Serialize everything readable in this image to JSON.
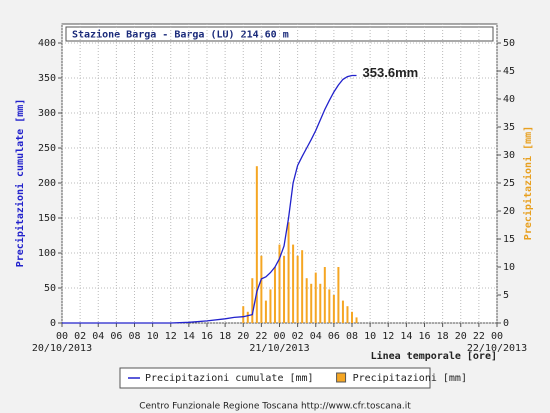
{
  "chart_data": {
    "type": "combo",
    "title": "Stazione Barga - Barga (LU) 214.60 m",
    "xlabel": "Linea temporale [ore]",
    "ylabel": "Precipitazioni cumulate [mm]",
    "y2label": "Precipitazioni [mm]",
    "footer": "Centro Funzionale Regione Toscana http://www.cfr.toscana.it",
    "grid": true,
    "legend": "bottom",
    "xlim": [
      0,
      48
    ],
    "xticks": [
      {
        "value": 0,
        "label": "00"
      },
      {
        "value": 2,
        "label": "02"
      },
      {
        "value": 4,
        "label": "04"
      },
      {
        "value": 6,
        "label": "06"
      },
      {
        "value": 8,
        "label": "08"
      },
      {
        "value": 10,
        "label": "10"
      },
      {
        "value": 12,
        "label": "12"
      },
      {
        "value": 14,
        "label": "14"
      },
      {
        "value": 16,
        "label": "16"
      },
      {
        "value": 18,
        "label": "18"
      },
      {
        "value": 20,
        "label": "20"
      },
      {
        "value": 22,
        "label": "22"
      },
      {
        "value": 24,
        "label": "00"
      },
      {
        "value": 26,
        "label": "02"
      },
      {
        "value": 28,
        "label": "04"
      },
      {
        "value": 30,
        "label": "06"
      },
      {
        "value": 32,
        "label": "08"
      },
      {
        "value": 34,
        "label": "10"
      },
      {
        "value": 36,
        "label": "12"
      },
      {
        "value": 38,
        "label": "14"
      },
      {
        "value": 40,
        "label": "16"
      },
      {
        "value": 42,
        "label": "18"
      },
      {
        "value": 44,
        "label": "20"
      },
      {
        "value": 46,
        "label": "22"
      },
      {
        "value": 48,
        "label": "00"
      }
    ],
    "x_date_labels": [
      {
        "value": 0,
        "label": "20/10/2013"
      },
      {
        "value": 24,
        "label": "21/10/2013"
      },
      {
        "value": 48,
        "label": "22/10/2013"
      }
    ],
    "ylim": [
      0,
      400
    ],
    "yticks": [
      0,
      50,
      100,
      150,
      200,
      250,
      300,
      350,
      400
    ],
    "y2lim": [
      0,
      50
    ],
    "y2ticks": [
      0,
      5,
      10,
      15,
      20,
      25,
      30,
      35,
      40,
      45,
      50
    ],
    "series": [
      {
        "name": "Precipitazioni cumulate [mm]",
        "type": "line",
        "color": "#2222cc",
        "axis": "y",
        "x": [
          0,
          12,
          14,
          16,
          18,
          19,
          20,
          21,
          21.5,
          22,
          22.5,
          23,
          23.5,
          24,
          24.5,
          25,
          25.5,
          26,
          26.5,
          27,
          27.5,
          28,
          28.5,
          29,
          29.5,
          30,
          30.5,
          31,
          31.5,
          32,
          32.5
        ],
        "values": [
          0,
          0,
          1,
          3,
          6,
          8,
          9,
          12,
          45,
          63,
          66,
          72,
          80,
          92,
          110,
          150,
          200,
          225,
          238,
          250,
          262,
          275,
          290,
          305,
          318,
          330,
          340,
          348,
          352,
          353.6,
          353.6
        ]
      },
      {
        "name": "Precipitazioni [mm]",
        "type": "bar",
        "color": "#f5a623",
        "axis": "y2",
        "x": [
          20,
          20.5,
          21,
          21.5,
          22,
          22.5,
          23,
          23.5,
          24,
          24.5,
          25,
          25.5,
          26,
          26.5,
          27,
          27.5,
          28,
          28.5,
          29,
          29.5,
          30,
          30.5,
          31,
          31.5,
          32,
          32.5
        ],
        "values": [
          3,
          2,
          8,
          28,
          12,
          4,
          6,
          10,
          14,
          12,
          18,
          14,
          12,
          13,
          8,
          7,
          9,
          7,
          10,
          6,
          5,
          10,
          4,
          3,
          2,
          1
        ]
      }
    ],
    "annotations": [
      {
        "text": "353.6mm"
      }
    ]
  }
}
